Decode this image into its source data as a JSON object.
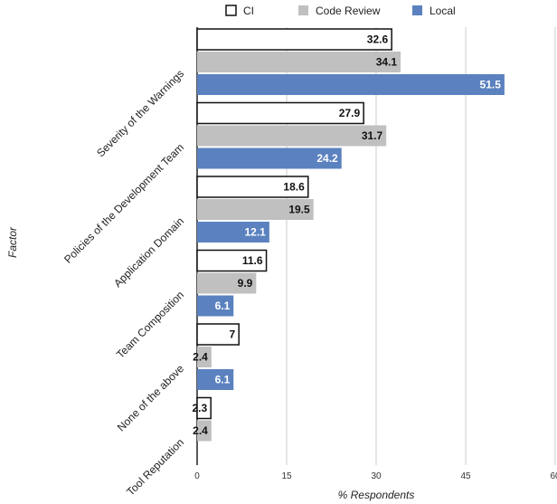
{
  "chart_data": {
    "type": "bar",
    "orientation": "horizontal",
    "categories": [
      "Severity of the Warnings",
      "Policies of the Development Team",
      "Application Domain",
      "Team Composition",
      "None of the above",
      "Tool Reputation"
    ],
    "series": [
      {
        "name": "CI",
        "color": "#ffffff",
        "values": [
          32.6,
          27.9,
          18.6,
          11.6,
          7,
          2.3
        ]
      },
      {
        "name": "Code Review",
        "color": "#c0c0c0",
        "values": [
          34.1,
          31.7,
          19.5,
          9.9,
          2.4,
          2.4
        ]
      },
      {
        "name": "Local",
        "color": "#5b82bf",
        "values": [
          51.5,
          24.2,
          12.1,
          6.1,
          6.1,
          null
        ]
      }
    ],
    "xlabel": "% Respondents",
    "ylabel": "Factor",
    "xlim": [
      0,
      60
    ],
    "xticks": [
      0,
      15,
      30,
      45,
      60
    ],
    "grid": true,
    "legend_position": "top"
  }
}
